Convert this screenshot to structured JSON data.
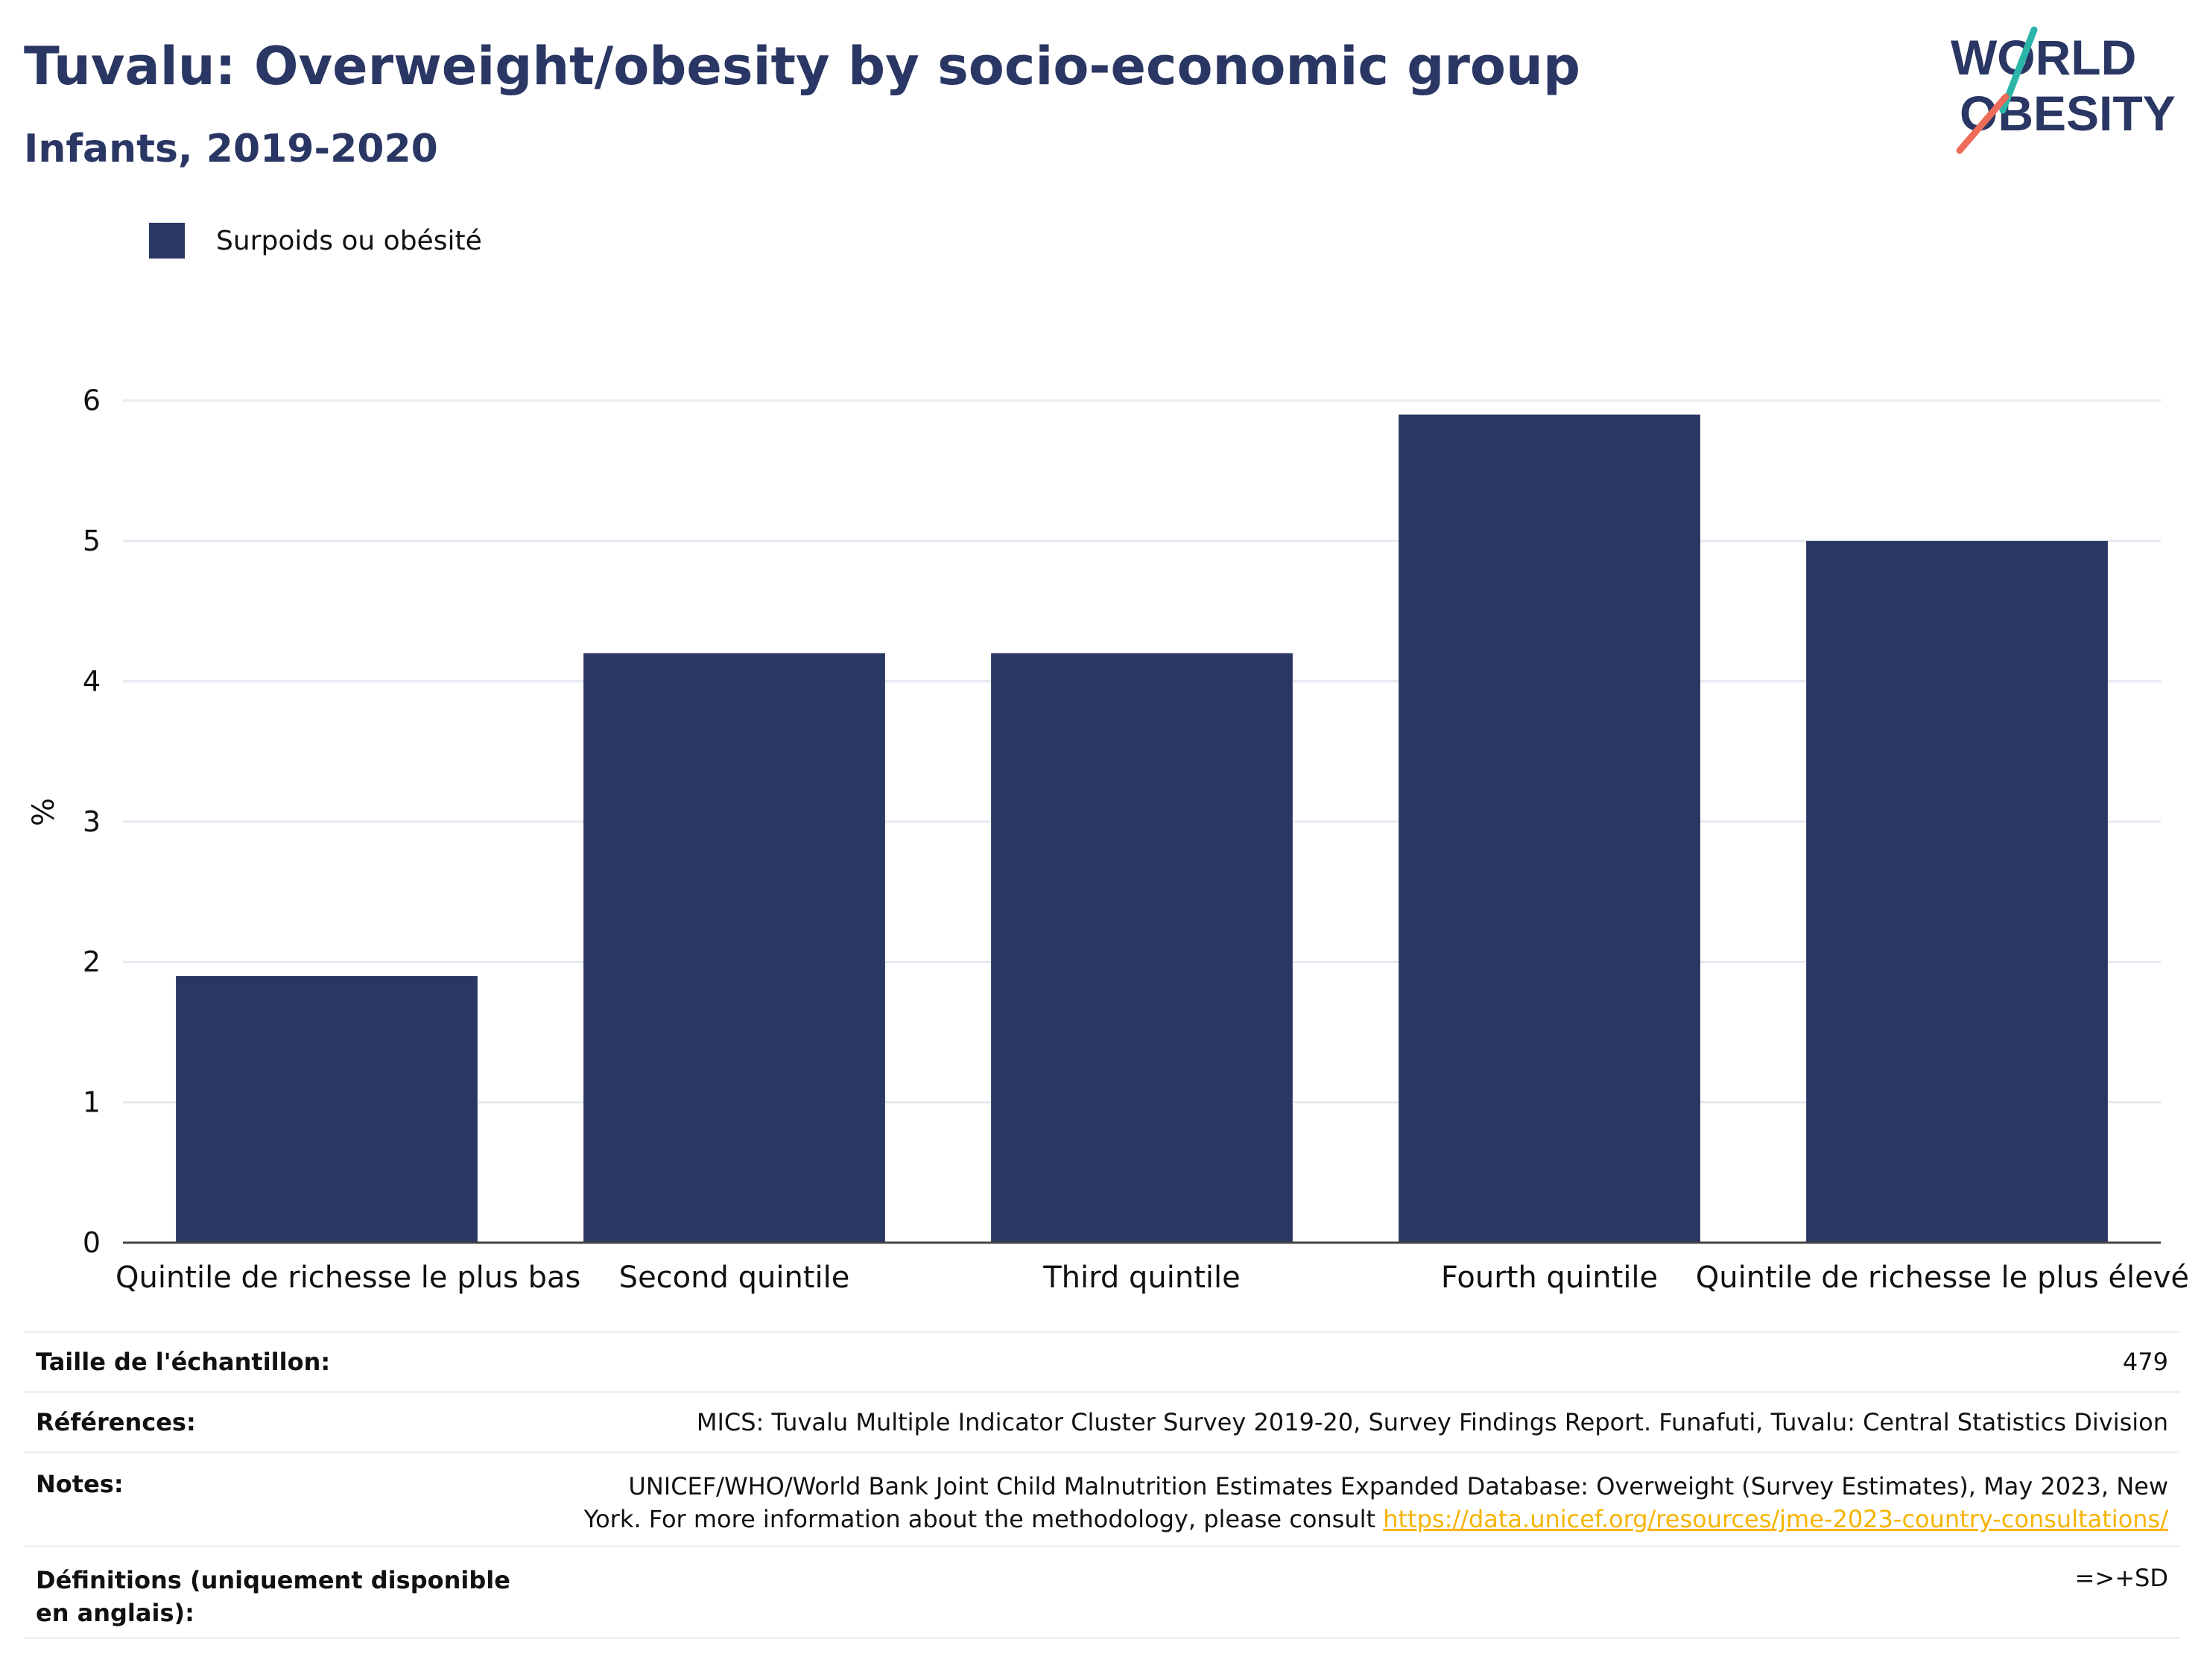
{
  "header": {
    "title": "Tuvalu: Overweight/obesity by socio-economic group",
    "subtitle": "Infants, 2019-2020"
  },
  "logo": {
    "line1": "WORLD",
    "line2": "OBESITY"
  },
  "colors": {
    "bar": "#2a3663",
    "title": "#2a3663",
    "grid": "#e6e9f0",
    "link": "#f5b400"
  },
  "chart_data": {
    "type": "bar",
    "categories": [
      "Quintile de richesse le plus bas",
      "Second quintile",
      "Third quintile",
      "Fourth quintile",
      "Quintile de richesse le plus élevé"
    ],
    "series": [
      {
        "name": "Surpoids ou obésité",
        "values": [
          1.9,
          4.2,
          4.2,
          5.9,
          5.0
        ]
      }
    ],
    "ylabel": "%",
    "xlabel": "",
    "ylim": [
      0,
      6.2
    ],
    "yticks": [
      0,
      1,
      2,
      3,
      4,
      5,
      6
    ],
    "grid": true,
    "legend": "top-left"
  },
  "info_table": {
    "sample_label": "Taille de l'échantillon:",
    "sample_value": "479",
    "refs_label": "Références:",
    "refs_value": "MICS: Tuvalu Multiple Indicator Cluster Survey 2019-20, Survey Findings Report. Funafuti, Tuvalu: Central Statistics Division",
    "notes_label": "Notes:",
    "notes_line1": "UNICEF/WHO/World Bank Joint Child Malnutrition Estimates Expanded Database: Overweight (Survey Estimates), May 2023, New",
    "notes_line2": "York. For more information about the methodology, please consult ",
    "notes_link": "https://data.unicef.org/resources/jme-2023-country-consultations/",
    "defs_label": "Définitions (uniquement disponible en anglais):",
    "defs_value": "=>+SD"
  }
}
